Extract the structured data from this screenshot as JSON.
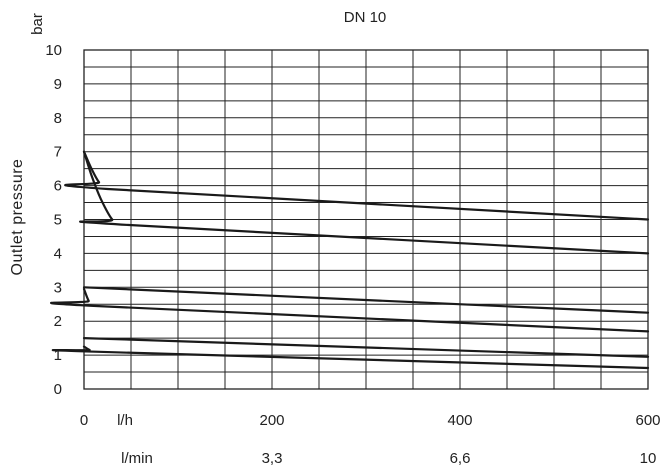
{
  "chart_data": {
    "type": "line",
    "title": "DN 10",
    "ylabel": "Outlet pressure",
    "yunit": "bar",
    "ylim": [
      0,
      10
    ],
    "xlim": [
      0,
      600
    ],
    "yticks": [
      "0",
      "1",
      "2",
      "3",
      "4",
      "5",
      "6",
      "7",
      "8",
      "9",
      "10"
    ],
    "xticks_lh": [
      {
        "x": 0,
        "label": "0"
      },
      {
        "x": 200,
        "label": "200"
      },
      {
        "x": 400,
        "label": "400"
      },
      {
        "x": 600,
        "label": "600"
      }
    ],
    "xunit_lh": "l/h",
    "xticks_lmin": [
      {
        "x": 200,
        "label": "3,3"
      },
      {
        "x": 400,
        "label": "6,6"
      },
      {
        "x": 600,
        "label": "10"
      }
    ],
    "xunit_lmin": "l/min",
    "grid": true,
    "series": [
      {
        "x": [
          0,
          8,
          16,
          25,
          600
        ],
        "values": [
          7.0,
          6.5,
          6.1,
          5.9,
          5.0
        ]
      },
      {
        "x": [
          0,
          8,
          18,
          30,
          40,
          600
        ],
        "values": [
          7.0,
          6.3,
          5.6,
          5.0,
          4.85,
          4.0
        ]
      },
      {
        "x": [
          0,
          600
        ],
        "values": [
          3.0,
          2.25
        ]
      },
      {
        "x": [
          0,
          5,
          10,
          600
        ],
        "values": [
          2.95,
          2.6,
          2.45,
          1.7
        ]
      },
      {
        "x": [
          0,
          600
        ],
        "values": [
          1.5,
          0.95
        ]
      },
      {
        "x": [
          0,
          6,
          12,
          600
        ],
        "values": [
          1.25,
          1.15,
          1.1,
          0.62
        ]
      }
    ]
  }
}
